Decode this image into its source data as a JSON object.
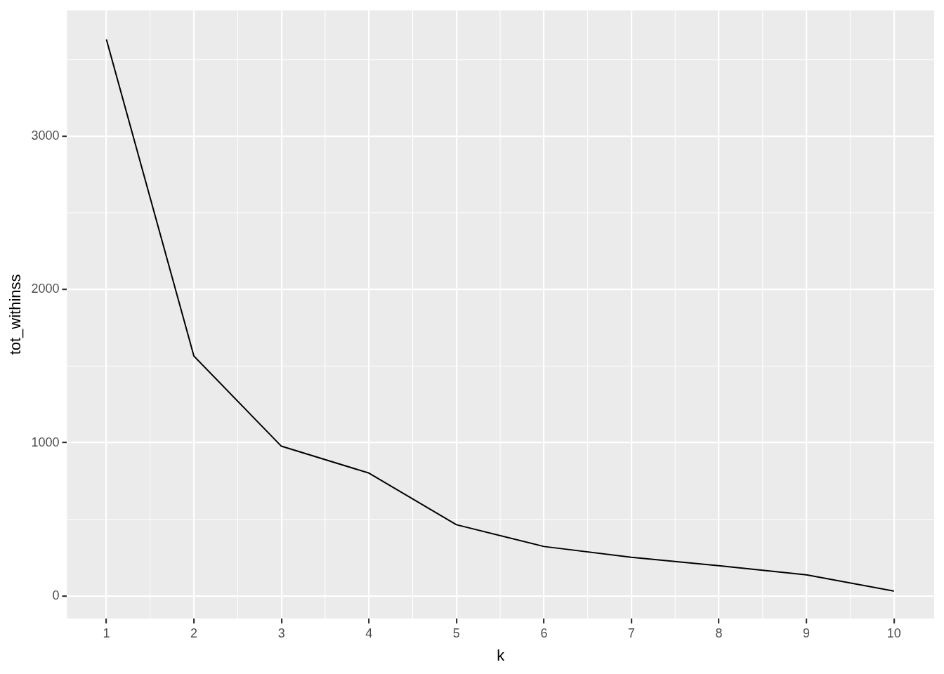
{
  "chart_data": {
    "type": "line",
    "xlabel": "k",
    "ylabel": "tot_withinss",
    "x": [
      1,
      2,
      3,
      4,
      5,
      6,
      7,
      8,
      9,
      10
    ],
    "series": [
      {
        "color": "#000000",
        "values": [
          3630,
          1565,
          977,
          802,
          465,
          323,
          253,
          198,
          138,
          32
        ]
      }
    ],
    "xlim": [
      0.55,
      10.46
    ],
    "xticks": [
      1,
      2,
      3,
      4,
      5,
      6,
      7,
      8,
      9,
      10
    ],
    "ylim": [
      -147,
      3820
    ],
    "yticks": [
      0,
      1000,
      2000,
      3000
    ],
    "grid": true,
    "legend": false,
    "marker": "none",
    "line_style": "solid"
  }
}
